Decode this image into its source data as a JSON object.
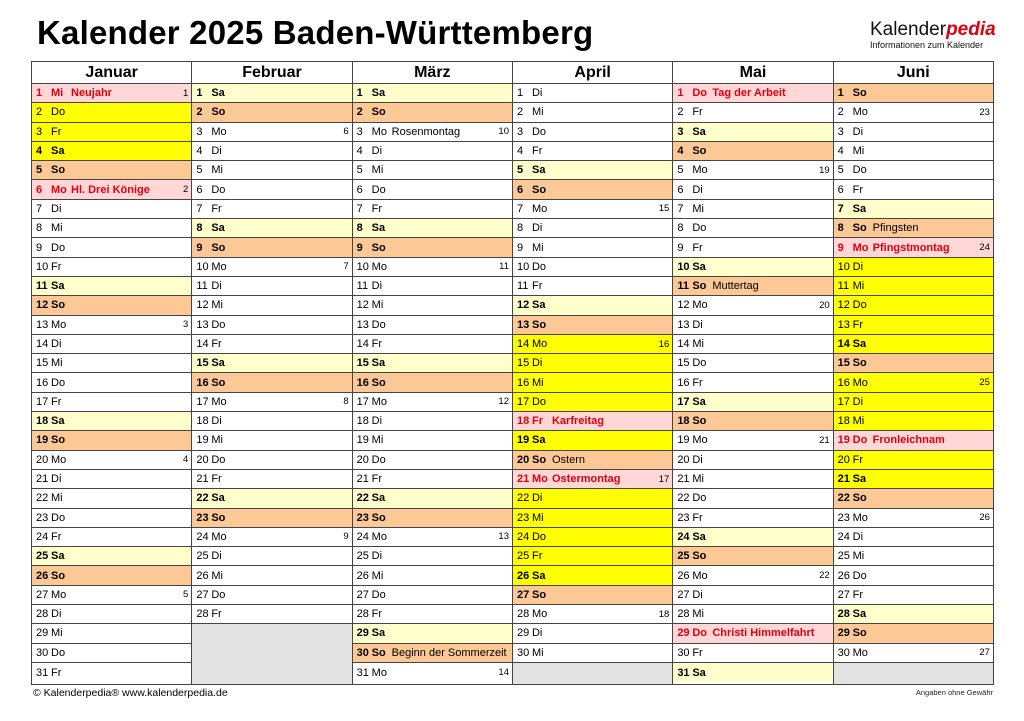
{
  "title": "Kalender 2025 Baden-Württemberg",
  "logo": {
    "main": "Kalender",
    "accent": "pedia",
    "sub": "Informationen zum Kalender"
  },
  "colors": {
    "holiday_bg": "#ffd7d7",
    "holiday_text": "#e0000f",
    "sunday_bg": "#fcc896",
    "saturday_bg": "#ffffcc",
    "vacation_bg": "#ffff00",
    "empty_bg": "#e3e3e3"
  },
  "legend_types": {
    "h": "holiday",
    "n": "sunday",
    "s": "saturday",
    "v": "school-vacation",
    "vs": "school-vacation-saturday",
    "": "weekday"
  },
  "months": [
    {
      "name": "Januar",
      "days": [
        [
          "1",
          "Mi",
          "Neujahr",
          "1",
          "h"
        ],
        [
          "2",
          "Do",
          "",
          "",
          "v"
        ],
        [
          "3",
          "Fr",
          "",
          "",
          "v"
        ],
        [
          "4",
          "Sa",
          "",
          "",
          "vs"
        ],
        [
          "5",
          "So",
          "",
          "",
          "n"
        ],
        [
          "6",
          "Mo",
          "Hl. Drei Könige",
          "2",
          "h"
        ],
        [
          "7",
          "Di",
          "",
          "",
          ""
        ],
        [
          "8",
          "Mi",
          "",
          "",
          ""
        ],
        [
          "9",
          "Do",
          "",
          "",
          ""
        ],
        [
          "10",
          "Fr",
          "",
          "",
          ""
        ],
        [
          "11",
          "Sa",
          "",
          "",
          "s"
        ],
        [
          "12",
          "So",
          "",
          "",
          "n"
        ],
        [
          "13",
          "Mo",
          "",
          "3",
          ""
        ],
        [
          "14",
          "Di",
          "",
          "",
          ""
        ],
        [
          "15",
          "Mi",
          "",
          "",
          ""
        ],
        [
          "16",
          "Do",
          "",
          "",
          ""
        ],
        [
          "17",
          "Fr",
          "",
          "",
          ""
        ],
        [
          "18",
          "Sa",
          "",
          "",
          "s"
        ],
        [
          "19",
          "So",
          "",
          "",
          "n"
        ],
        [
          "20",
          "Mo",
          "",
          "4",
          ""
        ],
        [
          "21",
          "Di",
          "",
          "",
          ""
        ],
        [
          "22",
          "Mi",
          "",
          "",
          ""
        ],
        [
          "23",
          "Do",
          "",
          "",
          ""
        ],
        [
          "24",
          "Fr",
          "",
          "",
          ""
        ],
        [
          "25",
          "Sa",
          "",
          "",
          "s"
        ],
        [
          "26",
          "So",
          "",
          "",
          "n"
        ],
        [
          "27",
          "Mo",
          "",
          "5",
          ""
        ],
        [
          "28",
          "Di",
          "",
          "",
          ""
        ],
        [
          "29",
          "Mi",
          "",
          "",
          ""
        ],
        [
          "30",
          "Do",
          "",
          "",
          ""
        ],
        [
          "31",
          "Fr",
          "",
          "",
          ""
        ]
      ]
    },
    {
      "name": "Februar",
      "days": [
        [
          "1",
          "Sa",
          "",
          "",
          "s"
        ],
        [
          "2",
          "So",
          "",
          "",
          "n"
        ],
        [
          "3",
          "Mo",
          "",
          "6",
          ""
        ],
        [
          "4",
          "Di",
          "",
          "",
          ""
        ],
        [
          "5",
          "Mi",
          "",
          "",
          ""
        ],
        [
          "6",
          "Do",
          "",
          "",
          ""
        ],
        [
          "7",
          "Fr",
          "",
          "",
          ""
        ],
        [
          "8",
          "Sa",
          "",
          "",
          "s"
        ],
        [
          "9",
          "So",
          "",
          "",
          "n"
        ],
        [
          "10",
          "Mo",
          "",
          "7",
          ""
        ],
        [
          "11",
          "Di",
          "",
          "",
          ""
        ],
        [
          "12",
          "Mi",
          "",
          "",
          ""
        ],
        [
          "13",
          "Do",
          "",
          "",
          ""
        ],
        [
          "14",
          "Fr",
          "",
          "",
          ""
        ],
        [
          "15",
          "Sa",
          "",
          "",
          "s"
        ],
        [
          "16",
          "So",
          "",
          "",
          "n"
        ],
        [
          "17",
          "Mo",
          "",
          "8",
          ""
        ],
        [
          "18",
          "Di",
          "",
          "",
          ""
        ],
        [
          "19",
          "Mi",
          "",
          "",
          ""
        ],
        [
          "20",
          "Do",
          "",
          "",
          ""
        ],
        [
          "21",
          "Fr",
          "",
          "",
          ""
        ],
        [
          "22",
          "Sa",
          "",
          "",
          "s"
        ],
        [
          "23",
          "So",
          "",
          "",
          "n"
        ],
        [
          "24",
          "Mo",
          "",
          "9",
          ""
        ],
        [
          "25",
          "Di",
          "",
          "",
          ""
        ],
        [
          "26",
          "Mi",
          "",
          "",
          ""
        ],
        [
          "27",
          "Do",
          "",
          "",
          ""
        ],
        [
          "28",
          "Fr",
          "",
          "",
          ""
        ]
      ]
    },
    {
      "name": "März",
      "days": [
        [
          "1",
          "Sa",
          "",
          "",
          "s"
        ],
        [
          "2",
          "So",
          "",
          "",
          "n"
        ],
        [
          "3",
          "Mo",
          "Rosenmontag",
          "10",
          ""
        ],
        [
          "4",
          "Di",
          "",
          "",
          ""
        ],
        [
          "5",
          "Mi",
          "",
          "",
          ""
        ],
        [
          "6",
          "Do",
          "",
          "",
          ""
        ],
        [
          "7",
          "Fr",
          "",
          "",
          ""
        ],
        [
          "8",
          "Sa",
          "",
          "",
          "s"
        ],
        [
          "9",
          "So",
          "",
          "",
          "n"
        ],
        [
          "10",
          "Mo",
          "",
          "11",
          ""
        ],
        [
          "11",
          "Di",
          "",
          "",
          ""
        ],
        [
          "12",
          "Mi",
          "",
          "",
          ""
        ],
        [
          "13",
          "Do",
          "",
          "",
          ""
        ],
        [
          "14",
          "Fr",
          "",
          "",
          ""
        ],
        [
          "15",
          "Sa",
          "",
          "",
          "s"
        ],
        [
          "16",
          "So",
          "",
          "",
          "n"
        ],
        [
          "17",
          "Mo",
          "",
          "12",
          ""
        ],
        [
          "18",
          "Di",
          "",
          "",
          ""
        ],
        [
          "19",
          "Mi",
          "",
          "",
          ""
        ],
        [
          "20",
          "Do",
          "",
          "",
          ""
        ],
        [
          "21",
          "Fr",
          "",
          "",
          ""
        ],
        [
          "22",
          "Sa",
          "",
          "",
          "s"
        ],
        [
          "23",
          "So",
          "",
          "",
          "n"
        ],
        [
          "24",
          "Mo",
          "",
          "13",
          ""
        ],
        [
          "25",
          "Di",
          "",
          "",
          ""
        ],
        [
          "26",
          "Mi",
          "",
          "",
          ""
        ],
        [
          "27",
          "Do",
          "",
          "",
          ""
        ],
        [
          "28",
          "Fr",
          "",
          "",
          ""
        ],
        [
          "29",
          "Sa",
          "",
          "",
          "s"
        ],
        [
          "30",
          "So",
          "Beginn der Sommerzeit",
          "",
          "n"
        ],
        [
          "31",
          "Mo",
          "",
          "14",
          ""
        ]
      ]
    },
    {
      "name": "April",
      "days": [
        [
          "1",
          "Di",
          "",
          "",
          ""
        ],
        [
          "2",
          "Mi",
          "",
          "",
          ""
        ],
        [
          "3",
          "Do",
          "",
          "",
          ""
        ],
        [
          "4",
          "Fr",
          "",
          "",
          ""
        ],
        [
          "5",
          "Sa",
          "",
          "",
          "s"
        ],
        [
          "6",
          "So",
          "",
          "",
          "n"
        ],
        [
          "7",
          "Mo",
          "",
          "15",
          ""
        ],
        [
          "8",
          "Di",
          "",
          "",
          ""
        ],
        [
          "9",
          "Mi",
          "",
          "",
          ""
        ],
        [
          "10",
          "Do",
          "",
          "",
          ""
        ],
        [
          "11",
          "Fr",
          "",
          "",
          ""
        ],
        [
          "12",
          "Sa",
          "",
          "",
          "s"
        ],
        [
          "13",
          "So",
          "",
          "",
          "n"
        ],
        [
          "14",
          "Mo",
          "",
          "16",
          "v"
        ],
        [
          "15",
          "Di",
          "",
          "",
          "v"
        ],
        [
          "16",
          "Mi",
          "",
          "",
          "v"
        ],
        [
          "17",
          "Do",
          "",
          "",
          "v"
        ],
        [
          "18",
          "Fr",
          "Karfreitag",
          "",
          "h"
        ],
        [
          "19",
          "Sa",
          "",
          "",
          "vs"
        ],
        [
          "20",
          "So",
          "Ostern",
          "",
          "n"
        ],
        [
          "21",
          "Mo",
          "Ostermontag",
          "17",
          "h"
        ],
        [
          "22",
          "Di",
          "",
          "",
          "v"
        ],
        [
          "23",
          "Mi",
          "",
          "",
          "v"
        ],
        [
          "24",
          "Do",
          "",
          "",
          "v"
        ],
        [
          "25",
          "Fr",
          "",
          "",
          "v"
        ],
        [
          "26",
          "Sa",
          "",
          "",
          "vs"
        ],
        [
          "27",
          "So",
          "",
          "",
          "n"
        ],
        [
          "28",
          "Mo",
          "",
          "18",
          ""
        ],
        [
          "29",
          "Di",
          "",
          "",
          ""
        ],
        [
          "30",
          "Mi",
          "",
          "",
          ""
        ]
      ]
    },
    {
      "name": "Mai",
      "days": [
        [
          "1",
          "Do",
          "Tag der Arbeit",
          "",
          "h"
        ],
        [
          "2",
          "Fr",
          "",
          "",
          ""
        ],
        [
          "3",
          "Sa",
          "",
          "",
          "s"
        ],
        [
          "4",
          "So",
          "",
          "",
          "n"
        ],
        [
          "5",
          "Mo",
          "",
          "19",
          ""
        ],
        [
          "6",
          "Di",
          "",
          "",
          ""
        ],
        [
          "7",
          "Mi",
          "",
          "",
          ""
        ],
        [
          "8",
          "Do",
          "",
          "",
          ""
        ],
        [
          "9",
          "Fr",
          "",
          "",
          ""
        ],
        [
          "10",
          "Sa",
          "",
          "",
          "s"
        ],
        [
          "11",
          "So",
          "Muttertag",
          "",
          "n"
        ],
        [
          "12",
          "Mo",
          "",
          "20",
          ""
        ],
        [
          "13",
          "Di",
          "",
          "",
          ""
        ],
        [
          "14",
          "Mi",
          "",
          "",
          ""
        ],
        [
          "15",
          "Do",
          "",
          "",
          ""
        ],
        [
          "16",
          "Fr",
          "",
          "",
          ""
        ],
        [
          "17",
          "Sa",
          "",
          "",
          "s"
        ],
        [
          "18",
          "So",
          "",
          "",
          "n"
        ],
        [
          "19",
          "Mo",
          "",
          "21",
          ""
        ],
        [
          "20",
          "Di",
          "",
          "",
          ""
        ],
        [
          "21",
          "Mi",
          "",
          "",
          ""
        ],
        [
          "22",
          "Do",
          "",
          "",
          ""
        ],
        [
          "23",
          "Fr",
          "",
          "",
          ""
        ],
        [
          "24",
          "Sa",
          "",
          "",
          "s"
        ],
        [
          "25",
          "So",
          "",
          "",
          "n"
        ],
        [
          "26",
          "Mo",
          "",
          "22",
          ""
        ],
        [
          "27",
          "Di",
          "",
          "",
          ""
        ],
        [
          "28",
          "Mi",
          "",
          "",
          ""
        ],
        [
          "29",
          "Do",
          "Christi Himmelfahrt",
          "",
          "h"
        ],
        [
          "30",
          "Fr",
          "",
          "",
          ""
        ],
        [
          "31",
          "Sa",
          "",
          "",
          "s"
        ]
      ]
    },
    {
      "name": "Juni",
      "days": [
        [
          "1",
          "So",
          "",
          "",
          "n"
        ],
        [
          "2",
          "Mo",
          "",
          "23",
          ""
        ],
        [
          "3",
          "Di",
          "",
          "",
          ""
        ],
        [
          "4",
          "Mi",
          "",
          "",
          ""
        ],
        [
          "5",
          "Do",
          "",
          "",
          ""
        ],
        [
          "6",
          "Fr",
          "",
          "",
          ""
        ],
        [
          "7",
          "Sa",
          "",
          "",
          "s"
        ],
        [
          "8",
          "So",
          "Pfingsten",
          "",
          "n"
        ],
        [
          "9",
          "Mo",
          "Pfingstmontag",
          "24",
          "h"
        ],
        [
          "10",
          "Di",
          "",
          "",
          "v"
        ],
        [
          "11",
          "Mi",
          "",
          "",
          "v"
        ],
        [
          "12",
          "Do",
          "",
          "",
          "v"
        ],
        [
          "13",
          "Fr",
          "",
          "",
          "v"
        ],
        [
          "14",
          "Sa",
          "",
          "",
          "vs"
        ],
        [
          "15",
          "So",
          "",
          "",
          "n"
        ],
        [
          "16",
          "Mo",
          "",
          "25",
          "v"
        ],
        [
          "17",
          "Di",
          "",
          "",
          "v"
        ],
        [
          "18",
          "Mi",
          "",
          "",
          "v"
        ],
        [
          "19",
          "Do",
          "Fronleichnam",
          "",
          "h"
        ],
        [
          "20",
          "Fr",
          "",
          "",
          "v"
        ],
        [
          "21",
          "Sa",
          "",
          "",
          "vs"
        ],
        [
          "22",
          "So",
          "",
          "",
          "n"
        ],
        [
          "23",
          "Mo",
          "",
          "26",
          ""
        ],
        [
          "24",
          "Di",
          "",
          "",
          ""
        ],
        [
          "25",
          "Mi",
          "",
          "",
          ""
        ],
        [
          "26",
          "Do",
          "",
          "",
          ""
        ],
        [
          "27",
          "Fr",
          "",
          "",
          ""
        ],
        [
          "28",
          "Sa",
          "",
          "",
          "s"
        ],
        [
          "29",
          "So",
          "",
          "",
          "n"
        ],
        [
          "30",
          "Mo",
          "",
          "27",
          ""
        ]
      ]
    }
  ],
  "footer": {
    "left": "© Kalenderpedia®   www.kalenderpedia.de",
    "right": "Angaben ohne Gewähr"
  }
}
